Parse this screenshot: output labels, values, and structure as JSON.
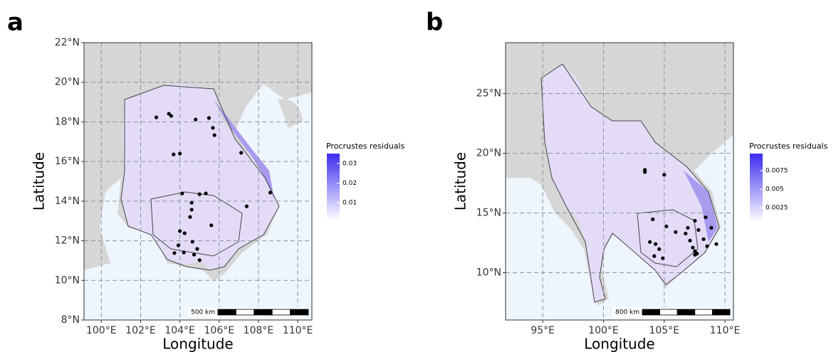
{
  "panels": [
    {
      "label": "a",
      "xlabel": "Longitude",
      "ylabel": "Latitude",
      "xlim": [
        99.12,
        110.72
      ],
      "ylim": [
        8,
        22
      ],
      "xticks": [
        {
          "value": 100,
          "label": "100°E"
        },
        {
          "value": 102,
          "label": "102°E"
        },
        {
          "value": 104,
          "label": "104°E"
        },
        {
          "value": 106,
          "label": "106°E"
        },
        {
          "value": 108,
          "label": "108°E"
        },
        {
          "value": 110,
          "label": "110°E"
        }
      ],
      "yticks": [
        {
          "value": 8,
          "label": "8°N"
        },
        {
          "value": 10,
          "label": "10°N"
        },
        {
          "value": 12,
          "label": "12°N"
        },
        {
          "value": 14,
          "label": "14°N"
        },
        {
          "value": 16,
          "label": "16°N"
        },
        {
          "value": 18,
          "label": "18°N"
        },
        {
          "value": 20,
          "label": "20°N"
        },
        {
          "value": 22,
          "label": "22°N"
        }
      ],
      "grid": true,
      "legend_title": "Procrustes residuals",
      "cbar_lim": [
        0.001,
        0.035
      ],
      "cbar_ticks": [
        0.01,
        0.02,
        0.03
      ],
      "cmap": [
        "#ffffff",
        "#3d2cf0"
      ],
      "point_color": "#000000",
      "scale_label": "500 km",
      "points": [
        [
          102.8,
          18.23
        ],
        [
          103.44,
          18.41
        ],
        [
          103.56,
          18.3
        ],
        [
          104.8,
          18.12
        ],
        [
          105.48,
          18.2
        ],
        [
          105.68,
          17.7
        ],
        [
          105.76,
          17.33
        ],
        [
          103.68,
          16.36
        ],
        [
          104.0,
          16.4
        ],
        [
          107.12,
          16.44
        ],
        [
          104.12,
          14.39
        ],
        [
          105.0,
          14.35
        ],
        [
          105.32,
          14.39
        ],
        [
          104.6,
          13.92
        ],
        [
          104.6,
          13.57
        ],
        [
          104.52,
          13.2
        ],
        [
          105.6,
          12.78
        ],
        [
          107.4,
          13.74
        ],
        [
          108.6,
          14.43
        ],
        [
          104.0,
          12.49
        ],
        [
          104.24,
          12.38
        ],
        [
          103.92,
          11.77
        ],
        [
          103.72,
          11.38
        ],
        [
          104.2,
          11.41
        ],
        [
          104.64,
          11.95
        ],
        [
          104.88,
          11.59
        ],
        [
          104.72,
          11.3
        ],
        [
          105.0,
          11.02
        ]
      ]
    },
    {
      "label": "b",
      "xlabel": "Longitude",
      "ylabel": "Latitude",
      "xlim": [
        91.94,
        110.7
      ],
      "ylim": [
        6.04,
        29.26
      ],
      "xticks": [
        {
          "value": 95,
          "label": "95°E"
        },
        {
          "value": 100,
          "label": "100°E"
        },
        {
          "value": 105,
          "label": "105°E"
        },
        {
          "value": 110,
          "label": "110°E"
        }
      ],
      "yticks": [
        {
          "value": 10,
          "label": "10°N"
        },
        {
          "value": 15,
          "label": "15°N"
        },
        {
          "value": 20,
          "label": "20°N"
        },
        {
          "value": 25,
          "label": "25°N"
        }
      ],
      "grid": true,
      "legend_title": "Procrustes residuals",
      "cbar_lim": [
        0.0006,
        0.0098
      ],
      "cbar_ticks": [
        0.0025,
        0.005,
        0.0075
      ],
      "cmap": [
        "#ffffff",
        "#3d2cf0"
      ],
      "point_color": "#000000",
      "scale_label": "800 km",
      "points": [
        [
          103.41,
          18.61
        ],
        [
          103.41,
          18.43
        ],
        [
          105.0,
          18.2
        ],
        [
          104.06,
          14.47
        ],
        [
          105.18,
          13.88
        ],
        [
          106.76,
          13.28
        ],
        [
          106.94,
          13.76
        ],
        [
          107.53,
          14.35
        ],
        [
          105.94,
          13.4
        ],
        [
          107.82,
          13.58
        ],
        [
          108.41,
          14.64
        ],
        [
          108.88,
          13.76
        ],
        [
          107.12,
          12.69
        ],
        [
          108.24,
          12.81
        ],
        [
          108.53,
          12.22
        ],
        [
          107.53,
          11.8
        ],
        [
          109.29,
          12.4
        ],
        [
          107.35,
          12.1
        ],
        [
          103.82,
          12.57
        ],
        [
          104.29,
          12.4
        ],
        [
          104.59,
          11.98
        ],
        [
          104.88,
          11.21
        ],
        [
          104.18,
          11.39
        ],
        [
          107.7,
          11.6
        ],
        [
          107.53,
          11.5
        ]
      ]
    }
  ]
}
